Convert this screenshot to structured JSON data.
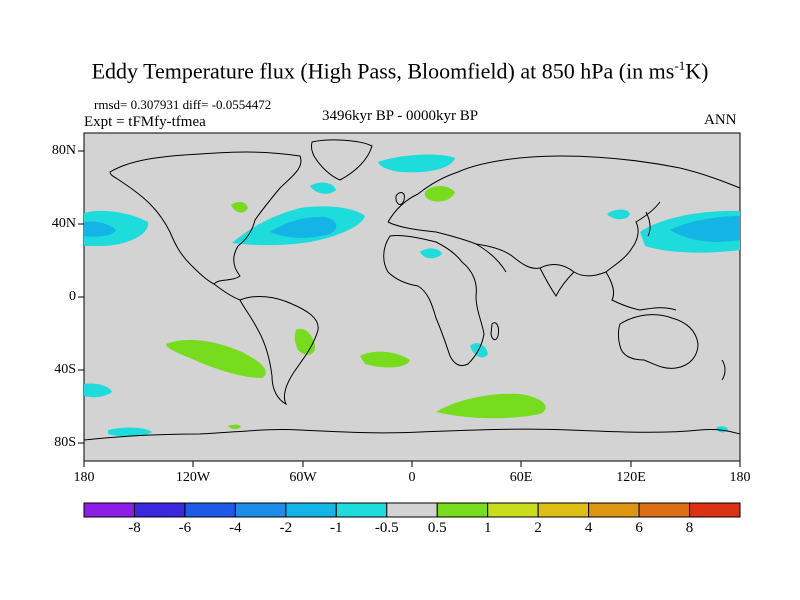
{
  "title_main": "Eddy Temperature flux (High Pass, Bloomfield) at 850 hPa (in ms",
  "title_sup": "-1",
  "title_end": "K)",
  "stats": "rmsd= 0.307931 diff= -0.0554472",
  "expt": "Expt = tFMfy-tfmea",
  "period": "3496kyr BP - 0000kyr BP",
  "season": "ANN",
  "map": {
    "lat_labels": [
      "80N",
      "40N",
      "0",
      "40S",
      "80S"
    ],
    "lon_labels": [
      "180",
      "120W",
      "60W",
      "0",
      "60E",
      "120E",
      "180"
    ],
    "ocean_color": "#d3d3d3",
    "coast_color": "#000000"
  },
  "colorbar": {
    "colors": [
      "#8c1ee6",
      "#3c28dc",
      "#1e5ae6",
      "#1e8ce6",
      "#14b4e6",
      "#1edcdc",
      "#d3d3d3",
      "#78dc1e",
      "#c8dc1e",
      "#dcbe14",
      "#dc9614",
      "#dc6e14",
      "#dc3214"
    ],
    "labels": [
      "-8",
      "-6",
      "-4",
      "-2",
      "-1",
      "-0.5",
      "0.5",
      "1",
      "2",
      "4",
      "6",
      "8"
    ]
  },
  "regions": {
    "cyan": "#1edcdc",
    "lightblue": "#14b4e6",
    "green": "#78dc1e"
  }
}
